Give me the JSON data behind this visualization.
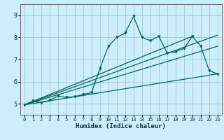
{
  "xlabel": "Humidex (Indice chaleur)",
  "background_color": "#cceeff",
  "grid_color": "#aacccc",
  "line_color": "#006655",
  "xlim": [
    -0.5,
    23.5
  ],
  "ylim": [
    4.5,
    9.5
  ],
  "xticks": [
    0,
    1,
    2,
    3,
    4,
    5,
    6,
    7,
    8,
    9,
    10,
    11,
    12,
    13,
    14,
    15,
    16,
    17,
    18,
    19,
    20,
    21,
    22,
    23
  ],
  "yticks": [
    5,
    6,
    7,
    8,
    9
  ],
  "main_x": [
    0,
    1,
    2,
    3,
    4,
    5,
    6,
    7,
    8,
    9,
    10,
    11,
    12,
    13,
    14,
    15,
    16,
    17,
    18,
    19,
    20,
    21,
    22,
    23
  ],
  "main_y": [
    4.95,
    5.12,
    5.05,
    5.15,
    5.35,
    5.28,
    5.32,
    5.42,
    5.5,
    6.6,
    7.6,
    8.0,
    8.2,
    8.95,
    8.0,
    7.85,
    8.05,
    7.3,
    7.35,
    7.5,
    8.05,
    7.6,
    6.5,
    6.35
  ],
  "line1_x": [
    0,
    23
  ],
  "line1_y": [
    4.95,
    6.35
  ],
  "line2_x": [
    0,
    23
  ],
  "line2_y": [
    4.95,
    8.1
  ],
  "line3_x": [
    0,
    23
  ],
  "line3_y": [
    4.95,
    7.6
  ],
  "line4_x": [
    0,
    20
  ],
  "line4_y": [
    4.95,
    8.05
  ]
}
